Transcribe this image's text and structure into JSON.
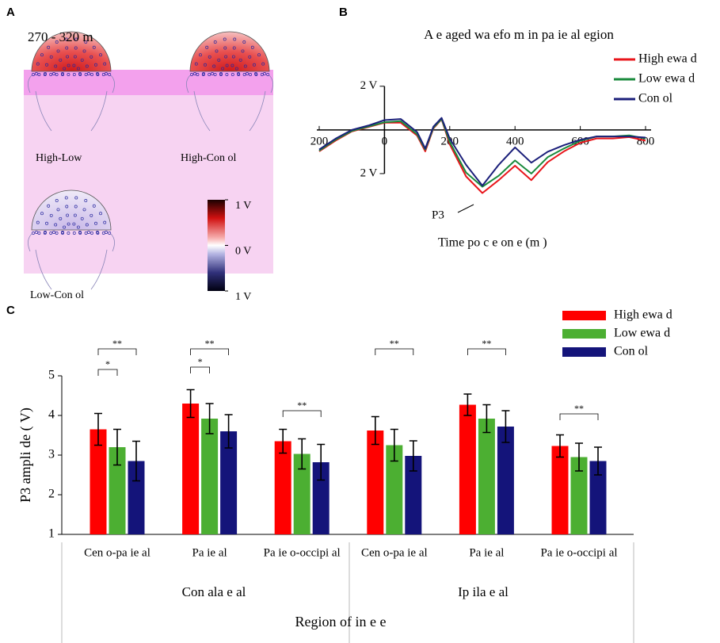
{
  "panels": {
    "a": "A",
    "b": "B",
    "c": "C"
  },
  "topomap": {
    "window": "270 - 320 m",
    "maps": [
      "High-Low",
      "High-Con ol",
      "Low-Con ol"
    ],
    "colorbar": {
      "lim": [
        -1,
        1
      ],
      "ticks": [
        {
          "value": 1,
          "label": "1 V"
        },
        {
          "value": 0,
          "label": "0 V"
        },
        {
          "value": -1,
          "label": "1 V"
        }
      ]
    }
  },
  "chart_data": [
    {
      "type": "line",
      "title": "A e aged wa efo m in pa ie al egion",
      "x_label": "Time po c e on e (m )",
      "annotation": "P3",
      "y_reversed": true,
      "xlim": [
        -200,
        800
      ],
      "ylim": [
        -2.5,
        3.2
      ],
      "xticks": [
        {
          "value": -200,
          "label": "200"
        },
        0,
        200,
        400,
        600,
        800
      ],
      "yticks": [
        {
          "value": -2,
          "label": "2 V"
        },
        {
          "value": 2,
          "label": "2 V"
        }
      ],
      "x": [
        -200,
        -150,
        -100,
        -50,
        0,
        50,
        100,
        125,
        150,
        175,
        200,
        250,
        300,
        350,
        400,
        450,
        500,
        550,
        600,
        650,
        700,
        750,
        800
      ],
      "series": [
        {
          "name": "High ewa d",
          "color": "#e8151b",
          "values": [
            0.98,
            0.49,
            0.07,
            -0.13,
            -0.33,
            -0.33,
            0.26,
            0.98,
            -0.07,
            -0.49,
            0.66,
            2.13,
            2.89,
            2.3,
            1.64,
            2.3,
            1.48,
            0.98,
            0.59,
            0.39,
            0.39,
            0.33,
            0.49
          ]
        },
        {
          "name": "Low ewa d",
          "color": "#1a8a3c",
          "values": [
            0.95,
            0.45,
            0.05,
            -0.15,
            -0.35,
            -0.4,
            0.2,
            0.9,
            -0.1,
            -0.5,
            0.55,
            1.95,
            2.6,
            2.1,
            1.4,
            2.0,
            1.25,
            0.85,
            0.5,
            0.3,
            0.3,
            0.25,
            0.4
          ]
        },
        {
          "name": "Con ol",
          "color": "#1b1f7a",
          "values": [
            0.9,
            0.4,
            0.0,
            -0.2,
            -0.45,
            -0.5,
            0.1,
            0.85,
            -0.15,
            -0.55,
            0.4,
            1.6,
            2.55,
            1.6,
            0.8,
            1.5,
            1.0,
            0.7,
            0.45,
            0.3,
            0.3,
            0.3,
            0.35
          ]
        }
      ]
    },
    {
      "type": "bar",
      "y_label": "P3 ampli de ( V)",
      "x_label": "Region of in e e",
      "categories": [
        "Cen o-pa ie al",
        "Pa ie al",
        "Pa ie o-occipi al",
        "Cen o-pa ie al",
        "Pa ie al",
        "Pa ie o-occipi al"
      ],
      "groups": [
        "Con ala e al",
        "Ip ila e al"
      ],
      "ylim": [
        1,
        5
      ],
      "yticks": [
        1,
        2,
        3,
        4,
        5
      ],
      "series": [
        {
          "name": "High ewa d",
          "color": "#ff0000",
          "values": [
            3.65,
            4.3,
            3.35,
            3.62,
            4.27,
            3.23
          ],
          "errors": [
            0.4,
            0.35,
            0.3,
            0.35,
            0.27,
            0.28
          ]
        },
        {
          "name": "Low ewa d",
          "color": "#4caf32",
          "values": [
            3.2,
            3.92,
            3.03,
            3.25,
            3.92,
            2.95
          ],
          "errors": [
            0.45,
            0.38,
            0.38,
            0.4,
            0.35,
            0.35
          ]
        },
        {
          "name": "Con ol",
          "color": "#14147a",
          "values": [
            2.85,
            3.6,
            2.82,
            2.98,
            3.72,
            2.85
          ],
          "errors": [
            0.5,
            0.42,
            0.45,
            0.38,
            0.4,
            0.35
          ]
        }
      ],
      "annotations": [
        "*",
        "**",
        "*",
        "**",
        "**",
        "**",
        "**",
        "**"
      ]
    }
  ]
}
